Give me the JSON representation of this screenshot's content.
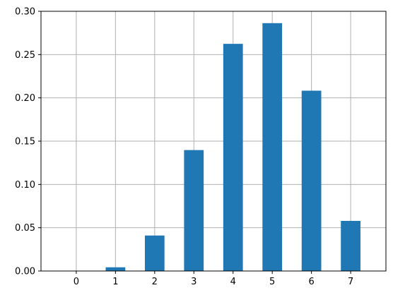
{
  "chart_data": {
    "type": "bar",
    "categories": [
      "0",
      "1",
      "2",
      "3",
      "4",
      "5",
      "6",
      "7"
    ],
    "values": [
      0.0001,
      0.0043,
      0.041,
      0.1397,
      0.2624,
      0.2863,
      0.2083,
      0.0579
    ],
    "title": "",
    "xlabel": "",
    "ylabel": "",
    "ylim": [
      0,
      0.3
    ],
    "yticks": [
      "0.00",
      "0.05",
      "0.10",
      "0.15",
      "0.20",
      "0.25",
      "0.30"
    ],
    "grid": true,
    "bar_color": "#1f77b4"
  }
}
